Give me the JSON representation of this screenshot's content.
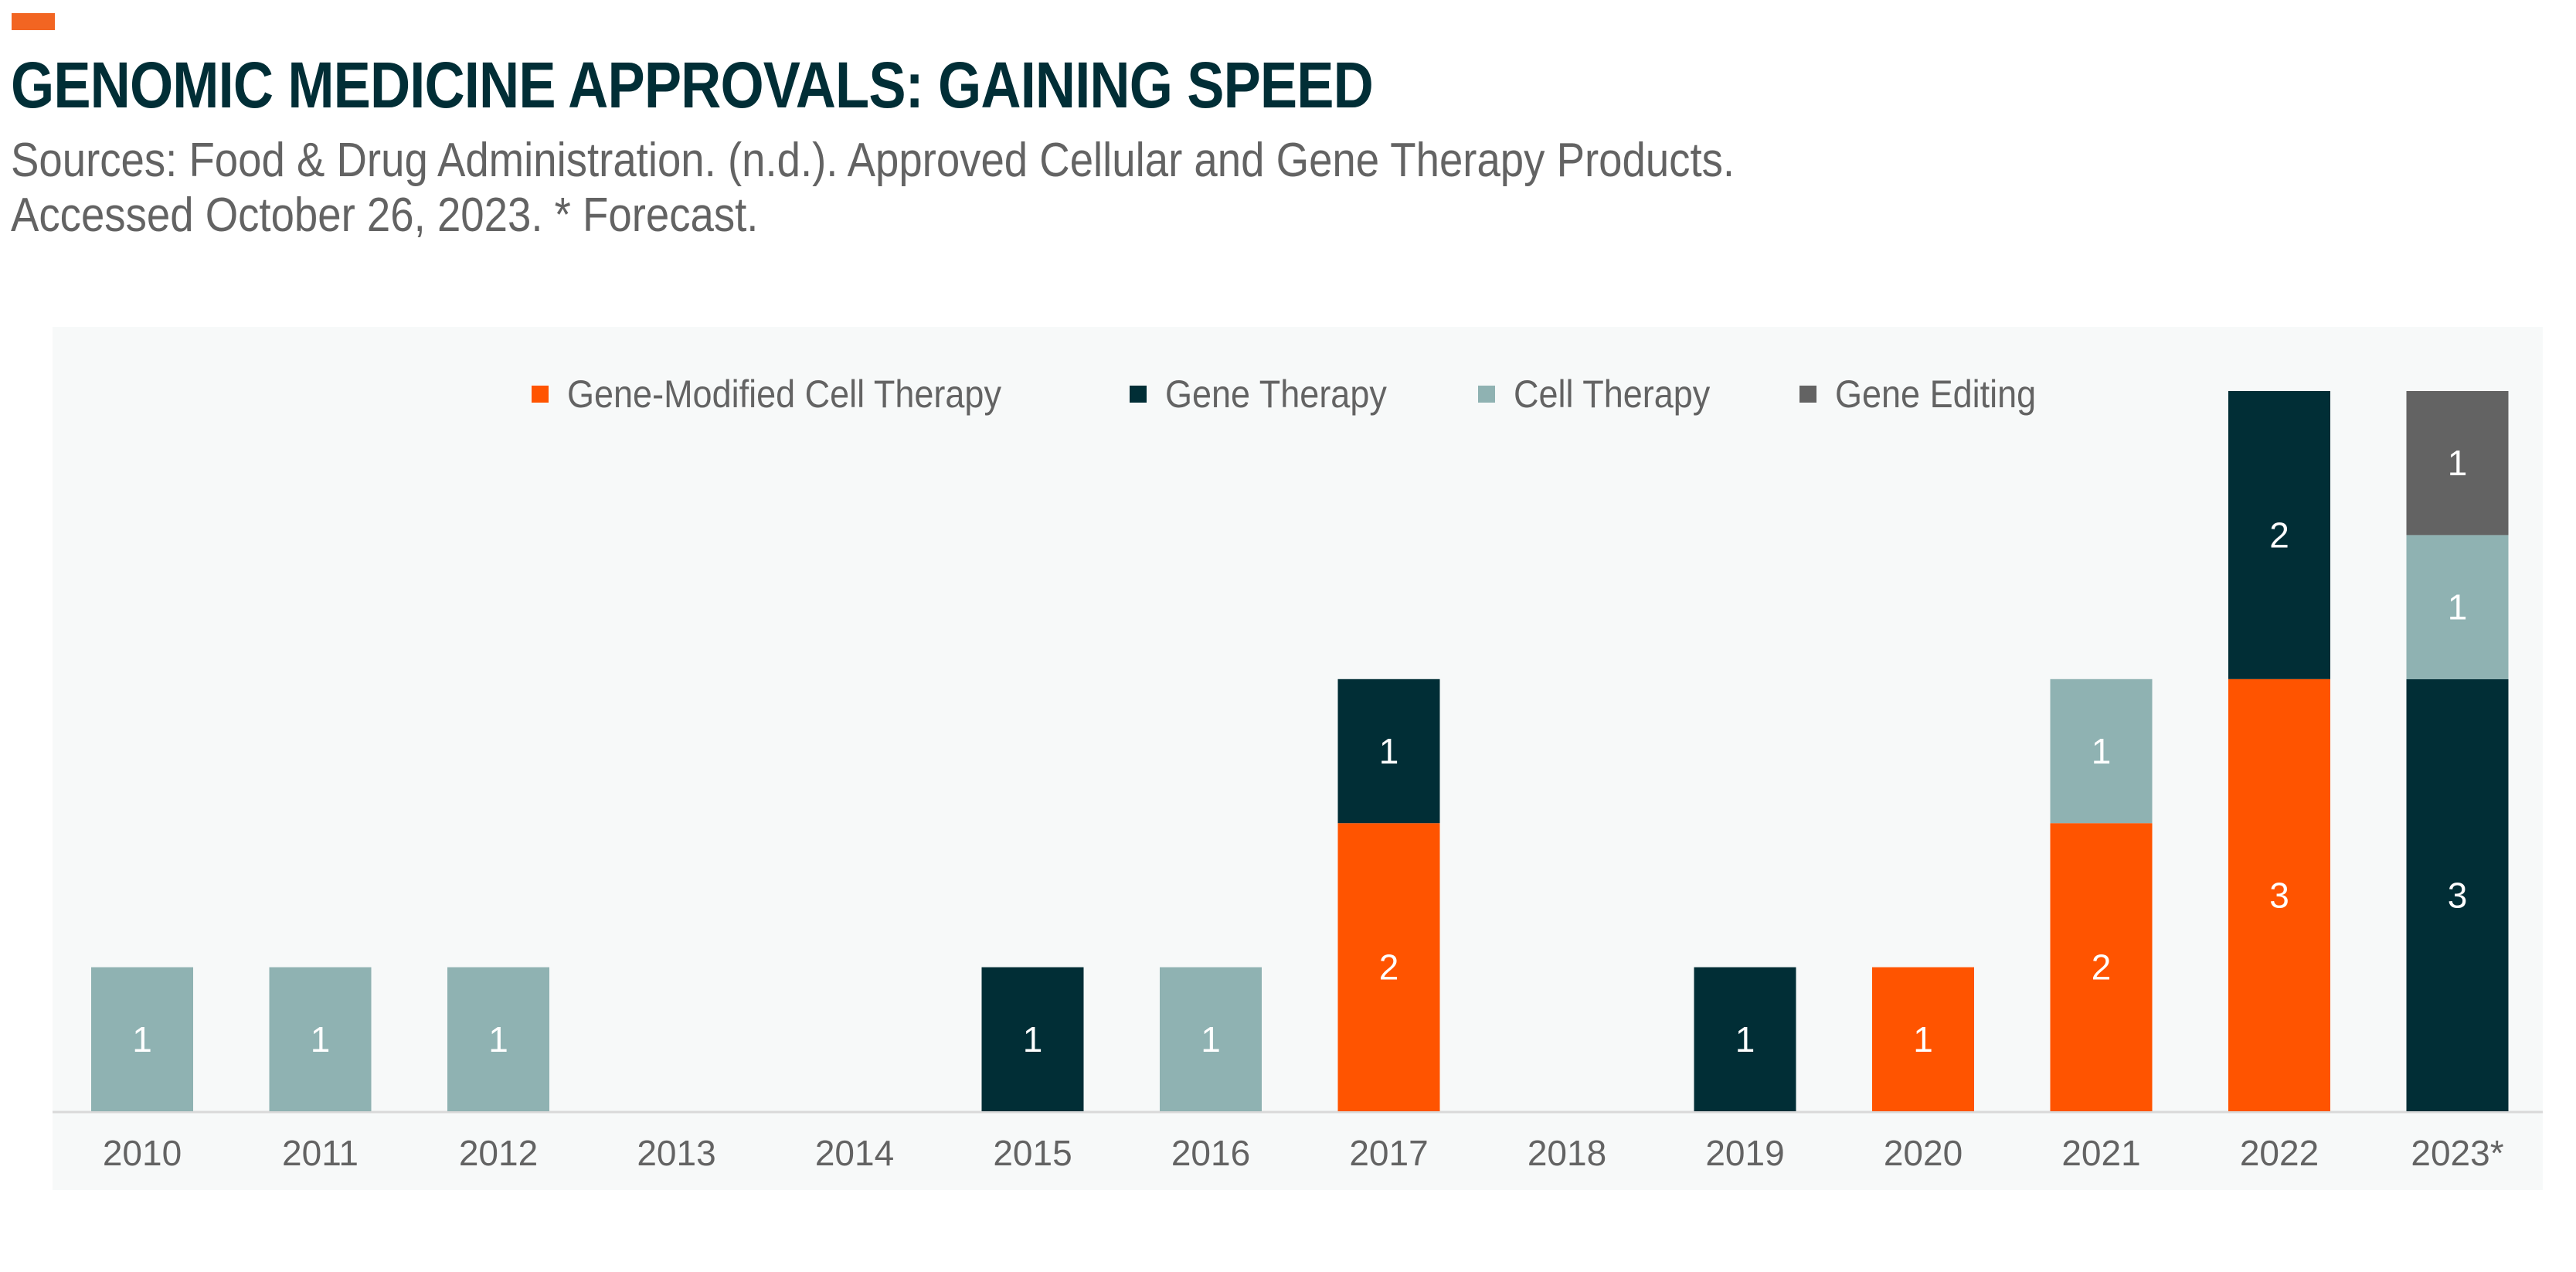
{
  "header": {
    "title": "GENOMIC MEDICINE APPROVALS: GAINING SPEED",
    "subtitle_line1": "Sources: Food & Drug Administration. (n.d.). Approved Cellular and Gene Therapy Products.",
    "subtitle_line2": "Accessed October 26, 2023. * Forecast.",
    "accent_color": "#f26522"
  },
  "chart_data": {
    "type": "bar",
    "stacked": true,
    "categories": [
      "2010",
      "2011",
      "2012",
      "2013",
      "2014",
      "2015",
      "2016",
      "2017",
      "2018",
      "2019",
      "2020",
      "2021",
      "2022",
      "2023*"
    ],
    "series": [
      {
        "name": "Gene-Modified Cell Therapy",
        "color": "#ff5400",
        "values": [
          0,
          0,
          0,
          0,
          0,
          0,
          0,
          2,
          0,
          0,
          1,
          2,
          3,
          0
        ]
      },
      {
        "name": "Gene Therapy",
        "color": "#012e36",
        "values": [
          0,
          0,
          0,
          0,
          0,
          1,
          0,
          1,
          0,
          1,
          0,
          0,
          2,
          3
        ]
      },
      {
        "name": "Cell Therapy",
        "color": "#8fb2b2",
        "values": [
          1,
          1,
          1,
          0,
          0,
          0,
          1,
          0,
          0,
          0,
          0,
          1,
          0,
          1
        ]
      },
      {
        "name": "Gene Editing",
        "color": "#636363",
        "values": [
          0,
          0,
          0,
          0,
          0,
          0,
          0,
          0,
          0,
          0,
          0,
          0,
          0,
          1
        ]
      }
    ],
    "ylim": [
      0,
      5
    ],
    "grid": false,
    "legend_position": "top",
    "data_labels": true
  }
}
